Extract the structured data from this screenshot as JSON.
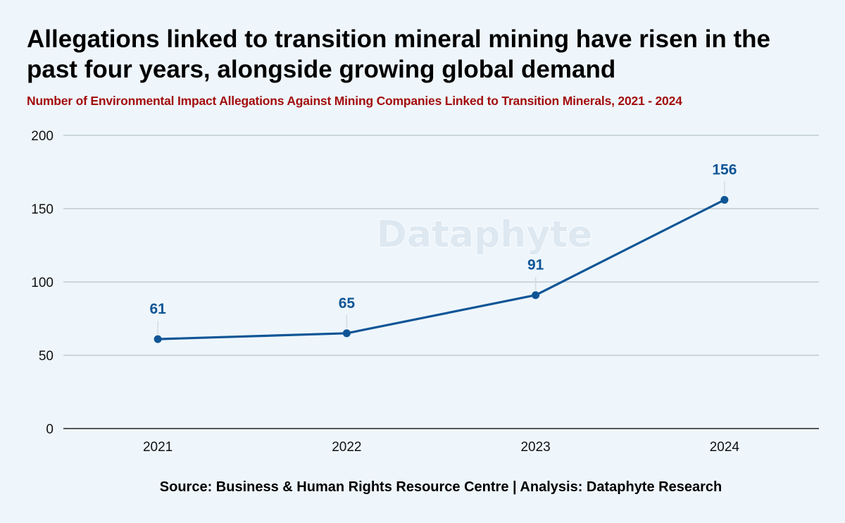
{
  "header": {
    "title": "Allegations linked to transition mineral mining have risen in the past four years, alongside growing global demand",
    "subtitle": "Number of Environmental Impact Allegations Against Mining Companies Linked to Transition Minerals, 2021 - 2024"
  },
  "watermark": "Dataphyte",
  "footer": {
    "source": "Source: Business & Human Rights Resource Centre | Analysis: Dataphyte Research"
  },
  "colors": {
    "background": "#eef6fc",
    "series": "#0f5596",
    "subtitle": "#a30d0d",
    "gridline": "#b9c2c9"
  },
  "chart_data": {
    "type": "line",
    "title": "Allegations linked to transition mineral mining have risen in the past four years, alongside growing global demand",
    "subtitle": "Number of Environmental Impact Allegations Against Mining Companies Linked to Transition Minerals, 2021 - 2024",
    "categories": [
      "2021",
      "2022",
      "2023",
      "2024"
    ],
    "series": [
      {
        "values": [
          61,
          65,
          91,
          156
        ]
      }
    ],
    "ylim": [
      0,
      200
    ],
    "yticks": [
      0,
      50,
      100,
      150,
      200
    ],
    "grid": true,
    "legend": "none",
    "data_labels": true
  }
}
